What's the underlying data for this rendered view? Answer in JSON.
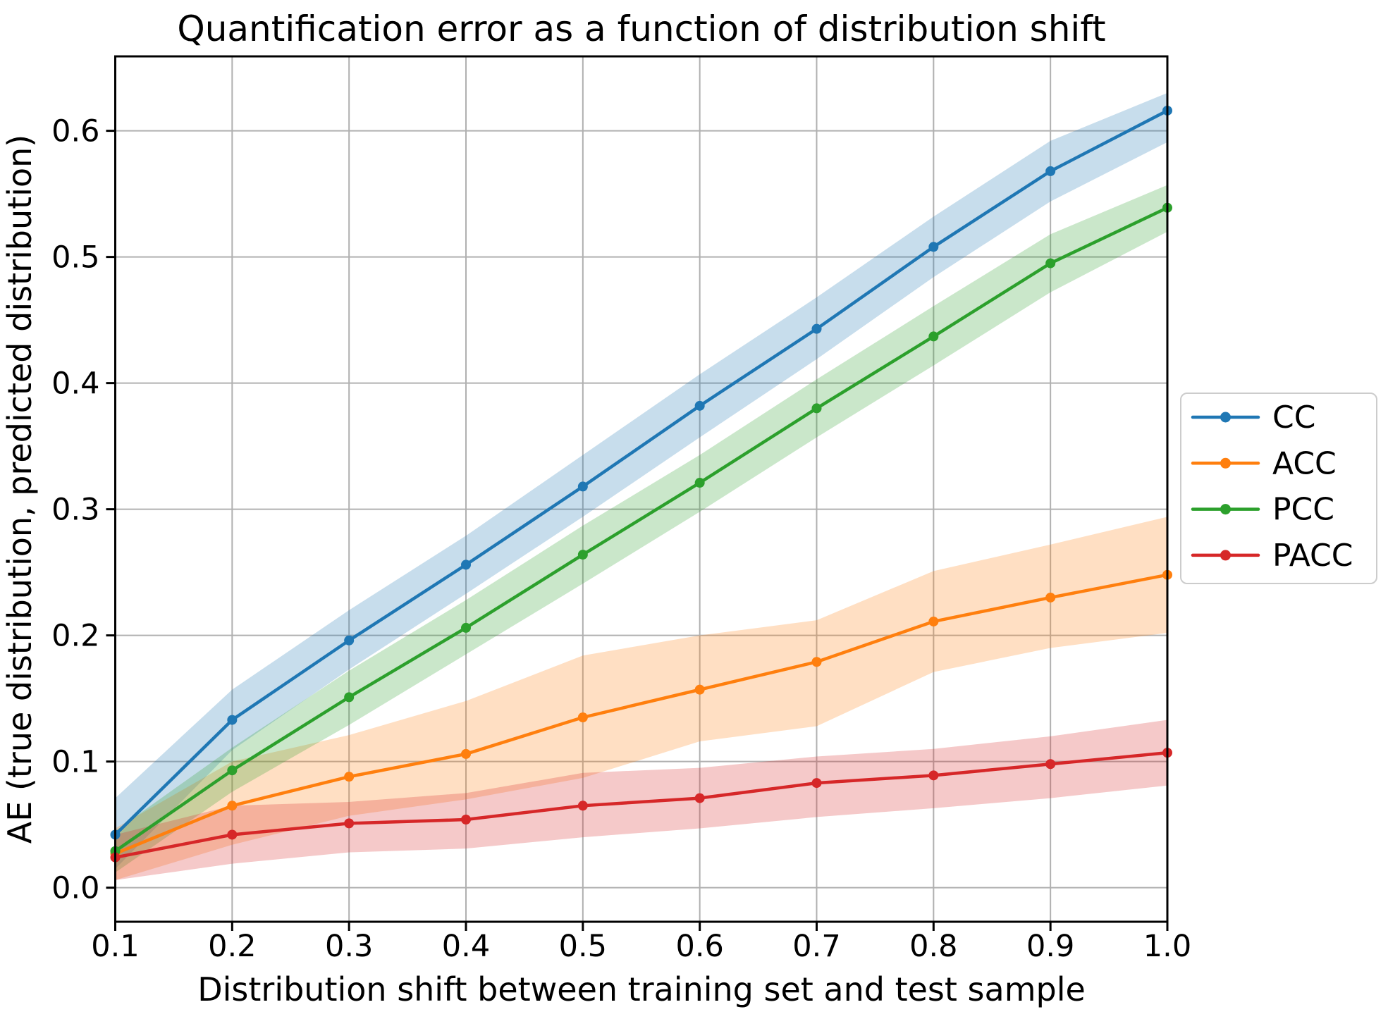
{
  "chart_data": {
    "type": "line",
    "title": "Quantification error as a function of distribution shift",
    "xlabel": "Distribution shift between training set and test sample",
    "ylabel": "AE (true distribution, predicted distribution)",
    "grid": true,
    "legend_position": "center-right-outside",
    "x": [
      0.1,
      0.2,
      0.3,
      0.4,
      0.5,
      0.6,
      0.7,
      0.8,
      0.9,
      1.0
    ],
    "x_tick_labels": [
      "0.1",
      "0.2",
      "0.3",
      "0.4",
      "0.5",
      "0.6",
      "0.7",
      "0.8",
      "0.9",
      "1.0"
    ],
    "y_ticks": [
      0.0,
      0.1,
      0.2,
      0.3,
      0.4,
      0.5,
      0.6
    ],
    "y_tick_labels": [
      "0.0",
      "0.1",
      "0.2",
      "0.3",
      "0.4",
      "0.5",
      "0.6"
    ],
    "xlim": [
      0.1,
      1.0
    ],
    "ylim": [
      -0.027,
      0.659
    ],
    "band_alpha": 0.25,
    "grid_color": "#b0b0b0",
    "series": [
      {
        "name": "CC",
        "color": "#1f77b4",
        "values": [
          0.042,
          0.133,
          0.196,
          0.256,
          0.318,
          0.382,
          0.443,
          0.508,
          0.568,
          0.616
        ],
        "band_upper": [
          0.071,
          0.157,
          0.22,
          0.279,
          0.343,
          0.407,
          0.468,
          0.532,
          0.592,
          0.63
        ],
        "band_lower": [
          0.015,
          0.109,
          0.173,
          0.233,
          0.294,
          0.357,
          0.419,
          0.484,
          0.544,
          0.591
        ]
      },
      {
        "name": "ACC",
        "color": "#ff7f0e",
        "values": [
          0.027,
          0.065,
          0.088,
          0.106,
          0.135,
          0.157,
          0.179,
          0.211,
          0.23,
          0.248
        ],
        "band_upper": [
          0.047,
          0.1,
          0.121,
          0.148,
          0.184,
          0.2,
          0.212,
          0.251,
          0.272,
          0.294
        ],
        "band_lower": [
          0.006,
          0.034,
          0.057,
          0.07,
          0.087,
          0.116,
          0.128,
          0.171,
          0.19,
          0.202
        ]
      },
      {
        "name": "PCC",
        "color": "#2ca02c",
        "values": [
          0.029,
          0.093,
          0.151,
          0.206,
          0.264,
          0.321,
          0.38,
          0.437,
          0.495,
          0.539
        ],
        "band_upper": [
          0.045,
          0.111,
          0.172,
          0.228,
          0.287,
          0.343,
          0.403,
          0.461,
          0.518,
          0.557
        ],
        "band_lower": [
          0.012,
          0.076,
          0.129,
          0.185,
          0.241,
          0.298,
          0.357,
          0.414,
          0.472,
          0.52
        ]
      },
      {
        "name": "PACC",
        "color": "#d62728",
        "values": [
          0.024,
          0.042,
          0.051,
          0.054,
          0.065,
          0.071,
          0.083,
          0.089,
          0.098,
          0.107
        ],
        "band_upper": [
          0.042,
          0.065,
          0.068,
          0.075,
          0.091,
          0.095,
          0.104,
          0.11,
          0.12,
          0.133
        ],
        "band_lower": [
          0.006,
          0.019,
          0.028,
          0.031,
          0.04,
          0.047,
          0.056,
          0.063,
          0.071,
          0.081
        ]
      }
    ]
  },
  "legend": {
    "items": [
      "CC",
      "ACC",
      "PCC",
      "PACC"
    ]
  }
}
